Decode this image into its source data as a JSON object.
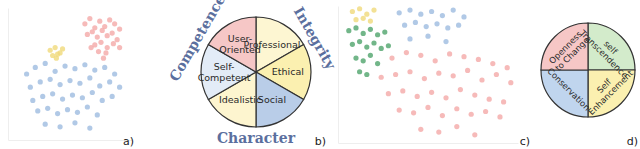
{
  "chart_data": [
    {
      "type": "scatter",
      "title": "a)",
      "xlim": [
        0,
        100
      ],
      "ylim": [
        0,
        100
      ],
      "tick_labels": false,
      "series": [
        {
          "color": "#f4a9a8",
          "x": [
            62,
            66,
            70,
            74,
            78,
            82,
            86,
            90,
            64,
            68,
            72,
            76,
            80,
            84,
            88,
            70,
            75,
            80,
            85,
            67,
            73,
            79,
            90,
            77
          ],
          "values": [
            88,
            92,
            85,
            90,
            86,
            91,
            88,
            84,
            80,
            82,
            78,
            83,
            79,
            81,
            76,
            72,
            74,
            70,
            73,
            70,
            67,
            66,
            70,
            62
          ]
        },
        {
          "color": "#f0d97a",
          "x": [
            34,
            38,
            42,
            36,
            40,
            44,
            39
          ],
          "values": [
            68,
            70,
            66,
            64,
            65,
            69,
            62
          ]
        },
        {
          "color": "#9dbbe0",
          "x": [
            15,
            22,
            30,
            38,
            46,
            54,
            62,
            70,
            78,
            86,
            18,
            26,
            34,
            42,
            50,
            58,
            66,
            74,
            82,
            90,
            20,
            28,
            36,
            44,
            52,
            60,
            68,
            76,
            84,
            24,
            32,
            40,
            48,
            56,
            64,
            72,
            30,
            42,
            54,
            66
          ],
          "values": [
            50,
            55,
            58,
            52,
            56,
            54,
            57,
            53,
            55,
            50,
            40,
            44,
            46,
            42,
            45,
            43,
            47,
            41,
            44,
            40,
            30,
            33,
            35,
            31,
            34,
            32,
            36,
            30,
            33,
            22,
            24,
            20,
            23,
            21,
            25,
            19,
            12,
            10,
            13,
            9
          ]
        }
      ]
    },
    {
      "type": "pie",
      "title": "b)",
      "categories": [
        "Professional",
        "Ethical",
        "Social",
        "Idealistic",
        "Self-Competent",
        "User-Oriented"
      ],
      "values": [
        1,
        1,
        1,
        1,
        1,
        1
      ],
      "colors": [
        "#fdf6d2",
        "#fbf0b0",
        "#b9cde8",
        "#fdf5cf",
        "#e3ecf7",
        "#f6c7c6"
      ],
      "groups": [
        {
          "name": "Competence",
          "categories": [
            "Self-Competent",
            "User-Oriented"
          ]
        },
        {
          "name": "Integrity",
          "categories": [
            "Professional",
            "Ethical"
          ]
        },
        {
          "name": "Character",
          "categories": [
            "Social",
            "Idealistic"
          ]
        }
      ]
    },
    {
      "type": "scatter",
      "title": "c)",
      "xlim": [
        0,
        100
      ],
      "ylim": [
        0,
        100
      ],
      "tick_labels": false,
      "series": [
        {
          "color": "#f0d97a",
          "x": [
            8,
            12,
            16,
            20,
            10,
            14,
            18
          ],
          "values": [
            96,
            98,
            94,
            97,
            90,
            91,
            89
          ]
        },
        {
          "color": "#4fa46c",
          "x": [
            6,
            10,
            14,
            18,
            22,
            26,
            8,
            12,
            16,
            20,
            24,
            28,
            10,
            14,
            18,
            22,
            12,
            16
          ],
          "values": [
            82,
            84,
            80,
            83,
            79,
            81,
            72,
            74,
            70,
            73,
            69,
            71,
            62,
            60,
            64,
            58,
            52,
            50
          ]
        },
        {
          "color": "#9dbbe0",
          "x": [
            34,
            40,
            46,
            52,
            58,
            64,
            70,
            37,
            43,
            49,
            55,
            61,
            67,
            40,
            50,
            60
          ],
          "values": [
            95,
            97,
            94,
            96,
            93,
            97,
            92,
            86,
            88,
            85,
            87,
            84,
            86,
            76,
            78,
            74
          ]
        },
        {
          "color": "#f4a9a8",
          "x": [
            30,
            38,
            46,
            54,
            62,
            70,
            78,
            86,
            94,
            24,
            32,
            40,
            48,
            56,
            64,
            72,
            80,
            88,
            96,
            28,
            36,
            44,
            52,
            60,
            68,
            76,
            84,
            92,
            34,
            42,
            50,
            58,
            66,
            74,
            82,
            90,
            46,
            56,
            66,
            76
          ],
          "values": [
            62,
            66,
            64,
            60,
            65,
            63,
            61,
            58,
            55,
            48,
            50,
            52,
            47,
            51,
            49,
            53,
            46,
            50,
            44,
            36,
            38,
            34,
            37,
            33,
            39,
            35,
            32,
            30,
            24,
            22,
            26,
            20,
            25,
            21,
            23,
            19,
            10,
            8,
            12,
            6
          ]
        }
      ]
    },
    {
      "type": "pie",
      "title": "d)",
      "categories": [
        "self Transcendence",
        "Self Enhancement",
        "Conservation",
        "Openness to Change"
      ],
      "values": [
        1,
        1,
        1,
        1
      ],
      "colors": [
        "#d3ebcb",
        "#fbf0b0",
        "#c0d5ee",
        "#f6c7c6"
      ]
    }
  ]
}
